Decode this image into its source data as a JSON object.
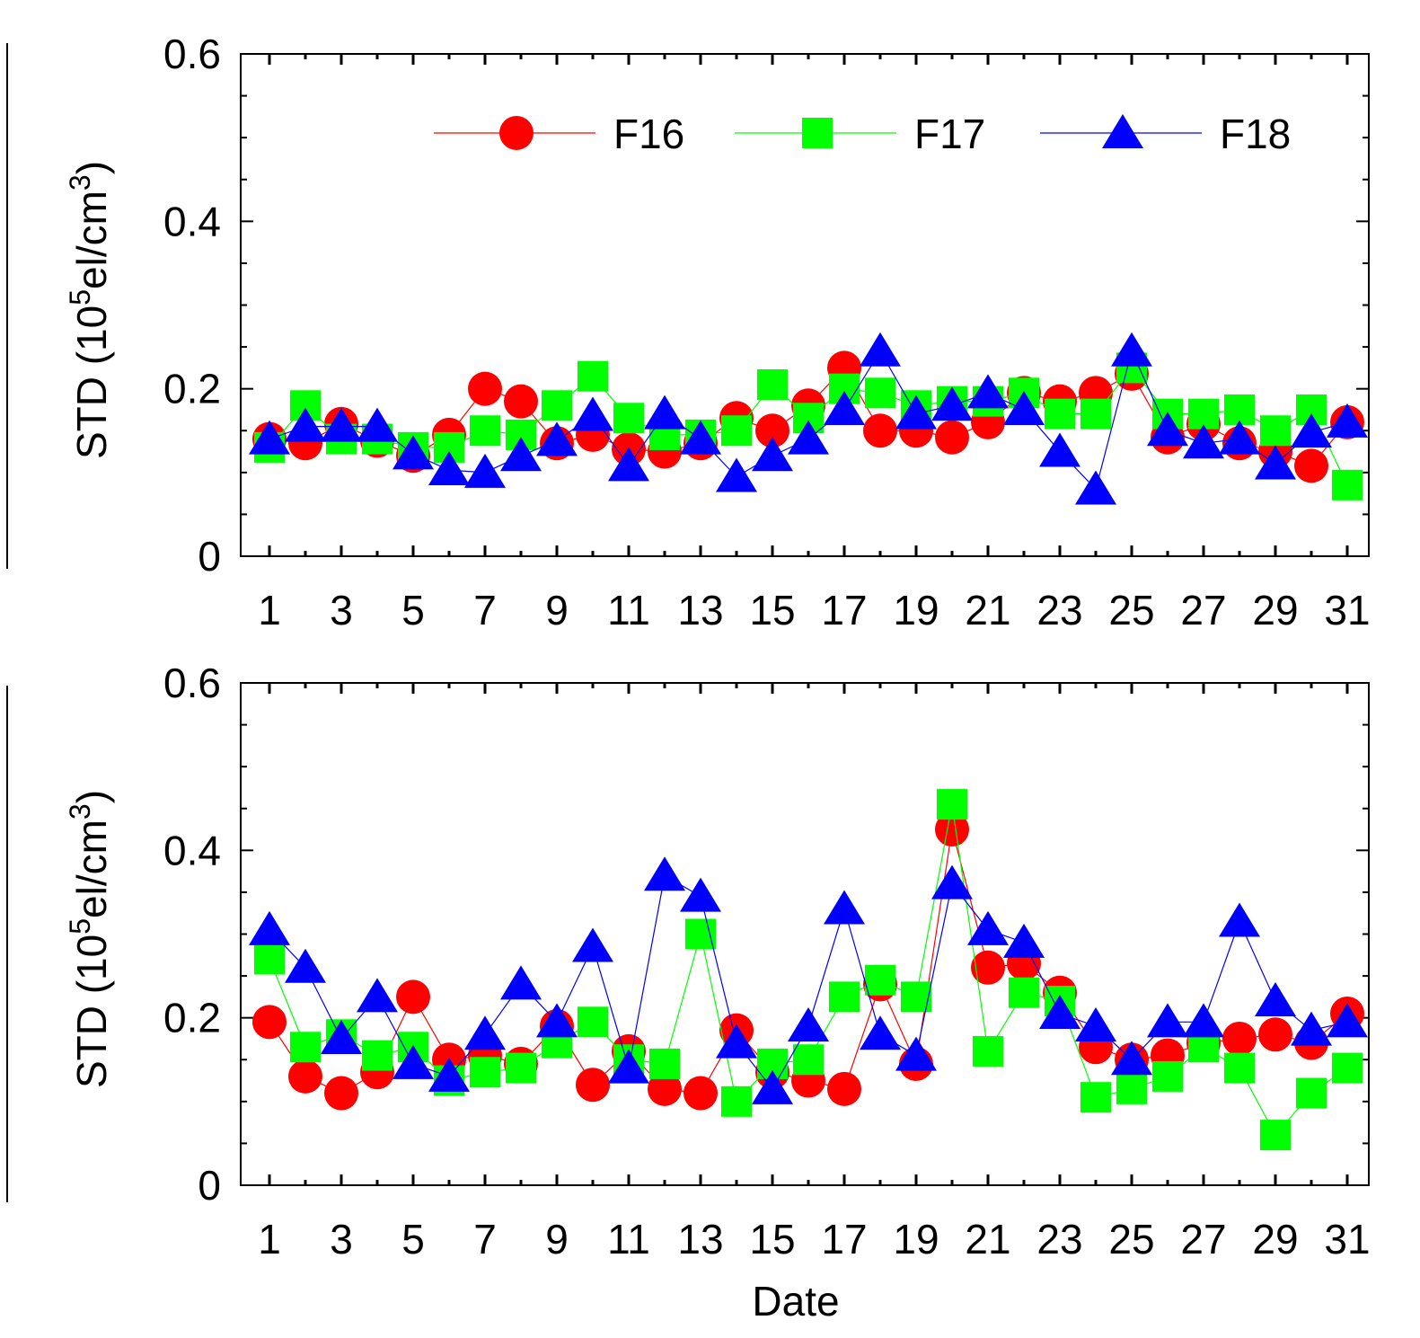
{
  "colors": {
    "F16": "#ff0000",
    "F17": "#00ff00",
    "F18": "#0000ff",
    "axis": "#000000"
  },
  "legend": [
    {
      "label": "F16",
      "marker": "circle"
    },
    {
      "label": "F17",
      "marker": "square"
    },
    {
      "label": "F18",
      "marker": "triangle"
    }
  ],
  "chart_data": [
    {
      "type": "line",
      "ylabel_prefix": "STD (10",
      "ylabel_exp1": "5",
      "ylabel_mid": "el/cm",
      "ylabel_exp2": "3",
      "ylabel_suffix": ")",
      "xlabel": "",
      "xlim": [
        0.2,
        31.6
      ],
      "ylim": [
        0,
        0.6
      ],
      "yticks": [
        0,
        0.2,
        0.4,
        0.6
      ],
      "ytick_labels": [
        "0",
        "0.2",
        "0.4",
        "0.6"
      ],
      "xticks": [
        1,
        3,
        5,
        7,
        9,
        11,
        13,
        15,
        17,
        19,
        21,
        23,
        25,
        27,
        29,
        31
      ],
      "xtick_labels": [
        "1",
        "3",
        "5",
        "7",
        "9",
        "11",
        "13",
        "15",
        "17",
        "19",
        "21",
        "23",
        "25",
        "27",
        "29",
        "31"
      ],
      "legend_position": "top-right",
      "x": [
        1,
        2,
        3,
        4,
        5,
        6,
        7,
        8,
        9,
        10,
        11,
        12,
        13,
        14,
        15,
        16,
        17,
        18,
        19,
        20,
        21,
        22,
        23,
        24,
        25,
        26,
        27,
        28,
        29,
        30,
        31
      ],
      "series": [
        {
          "name": "F16",
          "values": [
            0.14,
            0.135,
            0.158,
            0.138,
            0.12,
            0.145,
            0.2,
            0.185,
            0.135,
            0.145,
            0.128,
            0.125,
            0.135,
            0.165,
            0.15,
            0.18,
            0.225,
            0.15,
            0.15,
            0.142,
            0.16,
            0.195,
            0.185,
            0.195,
            0.218,
            0.142,
            0.158,
            0.135,
            0.125,
            0.108,
            0.16
          ]
        },
        {
          "name": "F17",
          "values": [
            0.13,
            0.18,
            0.14,
            0.14,
            0.13,
            0.13,
            0.15,
            0.145,
            0.18,
            0.215,
            0.165,
            0.145,
            0.145,
            0.15,
            0.205,
            0.165,
            0.2,
            0.195,
            0.18,
            0.185,
            0.185,
            0.195,
            0.17,
            0.17,
            0.225,
            0.17,
            0.17,
            0.175,
            0.15,
            0.175,
            0.085
          ]
        },
        {
          "name": "F18",
          "values": [
            0.14,
            0.155,
            0.155,
            0.155,
            0.122,
            0.103,
            0.1,
            0.12,
            0.138,
            0.168,
            0.108,
            0.17,
            0.14,
            0.095,
            0.12,
            0.14,
            0.175,
            0.245,
            0.17,
            0.18,
            0.195,
            0.175,
            0.125,
            0.08,
            0.245,
            0.15,
            0.135,
            0.14,
            0.11,
            0.148,
            0.16
          ]
        }
      ]
    },
    {
      "type": "line",
      "ylabel_prefix": "STD (10",
      "ylabel_exp1": "5",
      "ylabel_mid": "el/cm",
      "ylabel_exp2": "3",
      "ylabel_suffix": ")",
      "xlabel": "Date",
      "xlim": [
        0.2,
        31.6
      ],
      "ylim": [
        0,
        0.6
      ],
      "yticks": [
        0,
        0.2,
        0.4,
        0.6
      ],
      "ytick_labels": [
        "0",
        "0.2",
        "0.4",
        "0.6"
      ],
      "xticks": [
        1,
        3,
        5,
        7,
        9,
        11,
        13,
        15,
        17,
        19,
        21,
        23,
        25,
        27,
        29,
        31
      ],
      "xtick_labels": [
        "1",
        "3",
        "5",
        "7",
        "9",
        "11",
        "13",
        "15",
        "17",
        "19",
        "21",
        "23",
        "25",
        "27",
        "29",
        "31"
      ],
      "x": [
        1,
        2,
        3,
        4,
        5,
        6,
        7,
        8,
        9,
        10,
        11,
        12,
        13,
        14,
        15,
        16,
        17,
        18,
        19,
        20,
        21,
        22,
        23,
        24,
        25,
        26,
        27,
        28,
        29,
        30,
        31
      ],
      "series": [
        {
          "name": "F16",
          "values": [
            0.195,
            0.13,
            0.11,
            0.135,
            0.225,
            0.15,
            0.155,
            0.145,
            0.19,
            0.12,
            0.16,
            0.115,
            0.11,
            0.185,
            0.135,
            0.125,
            0.115,
            0.24,
            0.145,
            0.425,
            0.26,
            0.265,
            0.23,
            0.165,
            0.15,
            0.155,
            0.17,
            0.175,
            0.18,
            0.17,
            0.205
          ]
        },
        {
          "name": "F17",
          "values": [
            0.27,
            0.165,
            0.18,
            0.155,
            0.165,
            0.125,
            0.135,
            0.14,
            0.17,
            0.195,
            0.15,
            0.145,
            0.3,
            0.1,
            0.145,
            0.15,
            0.225,
            0.245,
            0.225,
            0.455,
            0.16,
            0.23,
            0.22,
            0.105,
            0.115,
            0.13,
            0.165,
            0.14,
            0.06,
            0.11,
            0.14
          ]
        },
        {
          "name": "F18",
          "values": [
            0.305,
            0.26,
            0.175,
            0.225,
            0.145,
            0.13,
            0.18,
            0.24,
            0.195,
            0.285,
            0.14,
            0.37,
            0.345,
            0.17,
            0.115,
            0.19,
            0.33,
            0.18,
            0.155,
            0.36,
            0.305,
            0.29,
            0.205,
            0.19,
            0.15,
            0.195,
            0.195,
            0.315,
            0.22,
            0.185,
            0.195
          ]
        }
      ]
    }
  ]
}
